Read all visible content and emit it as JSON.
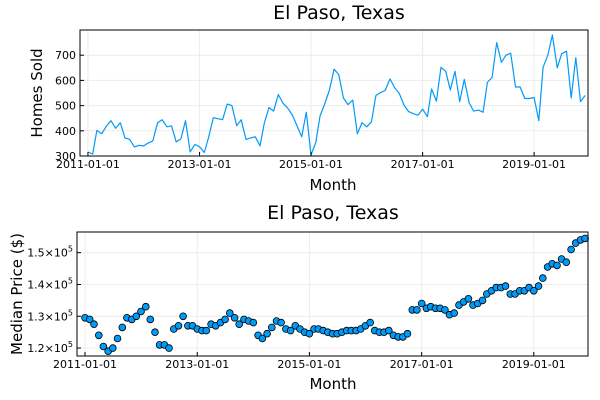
{
  "colors": {
    "series": "#009af9",
    "marker_stroke": "#000000",
    "grid": "#ececec"
  },
  "chart_data": [
    {
      "type": "line",
      "title": "El Paso, Texas",
      "xlabel": "Month",
      "ylabel": "Homes Sold",
      "grid": true,
      "legend": "none",
      "xlim": [
        "2011-01-01",
        "2019-12-01"
      ],
      "ylim": [
        300,
        800
      ],
      "xticks": [
        "2011-01-01",
        "2013-01-01",
        "2015-01-01",
        "2017-01-01",
        "2019-01-01"
      ],
      "yticks": [
        "300",
        "400",
        "500",
        "600",
        "700"
      ],
      "x": [
        "2011-01-01",
        "2011-02-01",
        "2011-03-01",
        "2011-04-01",
        "2011-05-01",
        "2011-06-01",
        "2011-07-01",
        "2011-08-01",
        "2011-09-01",
        "2011-10-01",
        "2011-11-01",
        "2011-12-01",
        "2012-01-01",
        "2012-02-01",
        "2012-03-01",
        "2012-04-01",
        "2012-05-01",
        "2012-06-01",
        "2012-07-01",
        "2012-08-01",
        "2012-09-01",
        "2012-10-01",
        "2012-11-01",
        "2012-12-01",
        "2013-01-01",
        "2013-02-01",
        "2013-03-01",
        "2013-04-01",
        "2013-05-01",
        "2013-06-01",
        "2013-07-01",
        "2013-08-01",
        "2013-09-01",
        "2013-10-01",
        "2013-11-01",
        "2013-12-01",
        "2014-01-01",
        "2014-02-01",
        "2014-03-01",
        "2014-04-01",
        "2014-05-01",
        "2014-06-01",
        "2014-07-01",
        "2014-08-01",
        "2014-09-01",
        "2014-10-01",
        "2014-11-01",
        "2014-12-01",
        "2015-01-01",
        "2015-02-01",
        "2015-03-01",
        "2015-04-01",
        "2015-05-01",
        "2015-06-01",
        "2015-07-01",
        "2015-08-01",
        "2015-09-01",
        "2015-10-01",
        "2015-11-01",
        "2015-12-01",
        "2016-01-01",
        "2016-02-01",
        "2016-03-01",
        "2016-04-01",
        "2016-05-01",
        "2016-06-01",
        "2016-07-01",
        "2016-08-01",
        "2016-09-01",
        "2016-10-01",
        "2016-11-01",
        "2016-12-01",
        "2017-01-01",
        "2017-02-01",
        "2017-03-01",
        "2017-04-01",
        "2017-05-01",
        "2017-06-01",
        "2017-07-01",
        "2017-08-01",
        "2017-09-01",
        "2017-10-01",
        "2017-11-01",
        "2017-12-01",
        "2018-01-01",
        "2018-02-01",
        "2018-03-01",
        "2018-04-01",
        "2018-05-01",
        "2018-06-01",
        "2018-07-01",
        "2018-08-01",
        "2018-09-01",
        "2018-10-01",
        "2018-11-01",
        "2018-12-01",
        "2019-01-01",
        "2019-02-01",
        "2019-03-01",
        "2019-04-01",
        "2019-05-01",
        "2019-06-01",
        "2019-07-01",
        "2019-08-01",
        "2019-09-01",
        "2019-10-01",
        "2019-11-01",
        "2019-12-01"
      ],
      "y": [
        316,
        308,
        402,
        388,
        418,
        440,
        410,
        432,
        372,
        366,
        336,
        342,
        340,
        352,
        360,
        432,
        444,
        416,
        420,
        356,
        368,
        440,
        316,
        346,
        336,
        314,
        374,
        452,
        448,
        444,
        506,
        500,
        420,
        444,
        366,
        372,
        376,
        340,
        430,
        492,
        478,
        544,
        510,
        490,
        462,
        420,
        376,
        474,
        304,
        354,
        458,
        508,
        560,
        644,
        624,
        530,
        504,
        522,
        388,
        432,
        416,
        436,
        540,
        552,
        560,
        606,
        572,
        548,
        502,
        476,
        468,
        462,
        486,
        456,
        566,
        518,
        652,
        636,
        562,
        636,
        516,
        604,
        512,
        478,
        482,
        474,
        592,
        612,
        750,
        672,
        700,
        708,
        574,
        574,
        528,
        528,
        532,
        440,
        652,
        700,
        780,
        650,
        706,
        716,
        530,
        690,
        516,
        540
      ]
    },
    {
      "type": "scatter",
      "title": "El Paso, Texas",
      "xlabel": "Month",
      "ylabel": "Median Price ($)",
      "grid": true,
      "legend": "none",
      "xlim": [
        "2011-01-01",
        "2019-12-01"
      ],
      "ylim": [
        117500,
        156500
      ],
      "xticks": [
        "2011-01-01",
        "2013-01-01",
        "2015-01-01",
        "2017-01-01",
        "2019-01-01"
      ],
      "yticks": [
        {
          "mantissa": "1.2",
          "exp": "5"
        },
        {
          "mantissa": "1.3",
          "exp": "5"
        },
        {
          "mantissa": "1.4",
          "exp": "5"
        },
        {
          "mantissa": "1.5",
          "exp": "5"
        }
      ],
      "x": [
        "2011-01-01",
        "2011-02-01",
        "2011-03-01",
        "2011-04-01",
        "2011-05-01",
        "2011-06-01",
        "2011-07-01",
        "2011-08-01",
        "2011-09-01",
        "2011-10-01",
        "2011-11-01",
        "2011-12-01",
        "2012-01-01",
        "2012-02-01",
        "2012-03-01",
        "2012-04-01",
        "2012-05-01",
        "2012-06-01",
        "2012-07-01",
        "2012-08-01",
        "2012-09-01",
        "2012-10-01",
        "2012-11-01",
        "2012-12-01",
        "2013-01-01",
        "2013-02-01",
        "2013-03-01",
        "2013-04-01",
        "2013-05-01",
        "2013-06-01",
        "2013-07-01",
        "2013-08-01",
        "2013-09-01",
        "2013-10-01",
        "2013-11-01",
        "2013-12-01",
        "2014-01-01",
        "2014-02-01",
        "2014-03-01",
        "2014-04-01",
        "2014-05-01",
        "2014-06-01",
        "2014-07-01",
        "2014-08-01",
        "2014-09-01",
        "2014-10-01",
        "2014-11-01",
        "2014-12-01",
        "2015-01-01",
        "2015-02-01",
        "2015-03-01",
        "2015-04-01",
        "2015-05-01",
        "2015-06-01",
        "2015-07-01",
        "2015-08-01",
        "2015-09-01",
        "2015-10-01",
        "2015-11-01",
        "2015-12-01",
        "2016-01-01",
        "2016-02-01",
        "2016-03-01",
        "2016-04-01",
        "2016-05-01",
        "2016-06-01",
        "2016-07-01",
        "2016-08-01",
        "2016-09-01",
        "2016-10-01",
        "2016-11-01",
        "2016-12-01",
        "2017-01-01",
        "2017-02-01",
        "2017-03-01",
        "2017-04-01",
        "2017-05-01",
        "2017-06-01",
        "2017-07-01",
        "2017-08-01",
        "2017-09-01",
        "2017-10-01",
        "2017-11-01",
        "2017-12-01",
        "2018-01-01",
        "2018-02-01",
        "2018-03-01",
        "2018-04-01",
        "2018-05-01",
        "2018-06-01",
        "2018-07-01",
        "2018-08-01",
        "2018-09-01",
        "2018-10-01",
        "2018-11-01",
        "2018-12-01",
        "2019-01-01",
        "2019-02-01",
        "2019-03-01",
        "2019-04-01",
        "2019-05-01",
        "2019-06-01",
        "2019-07-01",
        "2019-08-01",
        "2019-09-01",
        "2019-10-01",
        "2019-11-01",
        "2019-12-01"
      ],
      "y": [
        129500,
        129000,
        127500,
        124000,
        120500,
        119000,
        120000,
        123000,
        126500,
        129500,
        129000,
        130000,
        131500,
        133000,
        129000,
        125000,
        121000,
        121000,
        120000,
        126000,
        127000,
        130000,
        127000,
        127000,
        126000,
        125500,
        125500,
        127500,
        127000,
        128000,
        129000,
        131000,
        129500,
        127500,
        129000,
        128500,
        128000,
        124000,
        123000,
        124500,
        126500,
        128500,
        128000,
        126000,
        125500,
        127000,
        126000,
        125000,
        124500,
        126000,
        126000,
        125500,
        125000,
        124500,
        124500,
        125000,
        125500,
        125500,
        125500,
        126000,
        127000,
        128000,
        125500,
        125000,
        125000,
        125500,
        124000,
        123500,
        123500,
        124500,
        132000,
        132000,
        134000,
        132500,
        133000,
        132500,
        132500,
        132000,
        130500,
        131000,
        133500,
        134500,
        135500,
        133500,
        134000,
        135000,
        137000,
        138000,
        139000,
        139000,
        139500,
        137000,
        137000,
        138000,
        138000,
        139000,
        138000,
        139500,
        142000,
        145500,
        146500,
        146000,
        148000,
        147000,
        151000,
        153000,
        154000,
        154500
      ]
    }
  ]
}
